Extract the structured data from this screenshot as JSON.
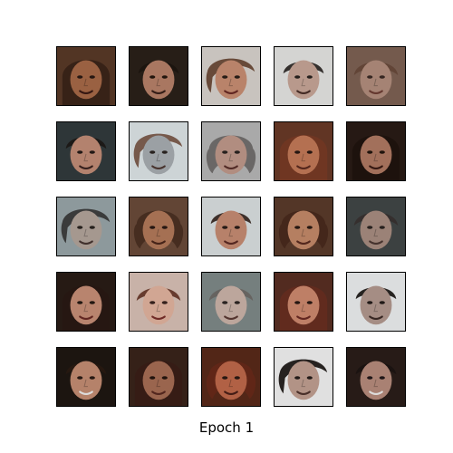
{
  "figure": {
    "caption": "Epoch 1"
  },
  "grid": {
    "rows": 5,
    "cols": 5,
    "tiles": [
      {
        "bg": "#5a3a28",
        "hair": "#3b2418",
        "skin": "#a86a48",
        "mouth": "#3a1a14",
        "eye": "#2a1a14",
        "hair_style": "long"
      },
      {
        "bg": "#2b2119",
        "hair": "#1f1711",
        "skin": "#b8826a",
        "mouth": "#3a201a",
        "eye": "#24170f",
        "hair_style": "short"
      },
      {
        "bg": "#d9d4cf",
        "hair": "#6b4a36",
        "skin": "#c98f73",
        "mouth": "#6a2a24",
        "eye": "#2b1f18",
        "hair_style": "side"
      },
      {
        "bg": "#e7e6e4",
        "hair": "#2f2b28",
        "skin": "#c8a798",
        "mouth": "#4a2f29",
        "eye": "#2a2320",
        "hair_style": "short"
      },
      {
        "bg": "#7e6254",
        "hair": "#6a4a3b",
        "skin": "#b38f7e",
        "mouth": "#6d3d33",
        "eye": "#3a2a24",
        "hair_style": "soft"
      },
      {
        "bg": "#323b3d",
        "hair": "#1f1a17",
        "skin": "#c38e78",
        "mouth": "#3b2320",
        "eye": "#241b17",
        "hair_style": "short"
      },
      {
        "bg": "#dfe6e9",
        "hair": "#7a5a4a",
        "skin": "#a9aeb2",
        "mouth": "#4f3934",
        "eye": "#2c2522",
        "hair_style": "side"
      },
      {
        "bg": "#b8b8b8",
        "hair": "#6f6c6a",
        "skin": "#c09a8b",
        "mouth": "#5a2f2a",
        "eye": "#2b2421",
        "hair_style": "curly"
      },
      {
        "bg": "#6a3a28",
        "hair": "#7a3b25",
        "skin": "#c47a58",
        "mouth": "#5b2a1f",
        "eye": "#2a1a14",
        "hair_style": "long"
      },
      {
        "bg": "#2a1c16",
        "hair": "#20140f",
        "skin": "#b07a63",
        "mouth": "#3a1b14",
        "eye": "#22160f",
        "hair_style": "long"
      },
      {
        "bg": "#9aa6aa",
        "hair": "#3a3a3a",
        "skin": "#b4a59c",
        "mouth": "#473631",
        "eye": "#2a2420",
        "hair_style": "side"
      },
      {
        "bg": "#6b4b3a",
        "hair": "#4b2f22",
        "skin": "#b37a5b",
        "mouth": "#4b261b",
        "eye": "#2a1a14",
        "hair_style": "curly"
      },
      {
        "bg": "#dce1e2",
        "hair": "#3a2b25",
        "skin": "#c78d73",
        "mouth": "#5d2b24",
        "eye": "#2a1d18",
        "hair_style": "short"
      },
      {
        "bg": "#5b3b2b",
        "hair": "#4a2a1d",
        "skin": "#c58a6a",
        "mouth": "#5a2b20",
        "eye": "#2a1b14",
        "hair_style": "curly"
      },
      {
        "bg": "#424747",
        "hair": "#3a3431",
        "skin": "#a98e82",
        "mouth": "#4c3832",
        "eye": "#2b2421",
        "hair_style": "soft"
      },
      {
        "bg": "#2a1d16",
        "hair": "#2a1a14",
        "skin": "#c89078",
        "mouth": "#6a2a24",
        "eye": "#241913",
        "hair_style": "long"
      },
      {
        "bg": "#d9c2b7",
        "hair": "#6a3a2a",
        "skin": "#e3b5a0",
        "mouth": "#7a2f2a",
        "eye": "#3a241f",
        "hair_style": "soft"
      },
      {
        "bg": "#7f8a89",
        "hair": "#6f6a67",
        "skin": "#cdb5aa",
        "mouth": "#5c3a34",
        "eye": "#2e2724",
        "hair_style": "soft"
      },
      {
        "bg": "#5a2f23",
        "hair": "#6b2f22",
        "skin": "#cf8a6f",
        "mouth": "#6a2a23",
        "eye": "#2a1a14",
        "hair_style": "long"
      },
      {
        "bg": "#eef0f1",
        "hair": "#1f1a18",
        "skin": "#b49a90",
        "mouth": "#3c2b27",
        "eye": "#231c19",
        "hair_style": "short"
      },
      {
        "bg": "#1f1712",
        "hair": "#2b1b13",
        "skin": "#c58e74",
        "mouth": "#f0efee",
        "eye": "#2a1b14",
        "hair_style": "short"
      },
      {
        "bg": "#3a241b",
        "hair": "#3b2017",
        "skin": "#a86e55",
        "mouth": "#5a2a21",
        "eye": "#24150f",
        "hair_style": "long"
      },
      {
        "bg": "#5a2a1a",
        "hair": "#6a2a19",
        "skin": "#c06a4b",
        "mouth": "#4a1f17",
        "eye": "#2a1a14",
        "hair_style": "curly"
      },
      {
        "bg": "#f3f3f3",
        "hair": "#1f1917",
        "skin": "#c2a092",
        "mouth": "#4f332d",
        "eye": "#251d1a",
        "hair_style": "side"
      },
      {
        "bg": "#2b1e19",
        "hair": "#1d1513",
        "skin": "#b88d7d",
        "mouth": "#f0efee",
        "eye": "#21171a",
        "hair_style": "short"
      }
    ]
  }
}
